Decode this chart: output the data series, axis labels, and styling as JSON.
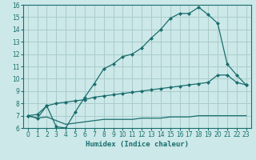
{
  "xlabel": "Humidex (Indice chaleur)",
  "bg_color": "#cce8e8",
  "grid_color": "#aacccc",
  "line_color": "#1a6e6e",
  "xmin": 0,
  "xmax": 23,
  "ymin": 6,
  "ymax": 16,
  "line1_x": [
    0,
    1,
    2,
    3,
    4,
    5,
    6,
    7,
    8,
    9,
    10,
    11,
    12,
    13,
    14,
    15,
    16,
    17,
    18,
    19,
    20,
    21,
    22,
    23
  ],
  "line1_y": [
    7.0,
    6.8,
    7.8,
    6.1,
    6.0,
    7.3,
    8.5,
    9.6,
    10.8,
    11.2,
    11.8,
    12.0,
    12.5,
    13.3,
    14.0,
    14.9,
    15.3,
    15.3,
    15.8,
    15.2,
    14.5,
    11.2,
    10.3,
    9.5
  ],
  "line2_x": [
    0,
    1,
    2,
    3,
    4,
    5,
    6,
    7,
    8,
    9,
    10,
    11,
    12,
    13,
    14,
    15,
    16,
    17,
    18,
    19,
    20,
    21,
    22,
    23
  ],
  "line2_y": [
    7.0,
    7.1,
    7.8,
    8.0,
    8.1,
    8.2,
    8.3,
    8.5,
    8.6,
    8.7,
    8.8,
    8.9,
    9.0,
    9.1,
    9.2,
    9.3,
    9.4,
    9.5,
    9.6,
    9.7,
    10.3,
    10.3,
    9.7,
    9.5
  ],
  "line3_x": [
    0,
    1,
    2,
    3,
    4,
    5,
    6,
    7,
    8,
    9,
    10,
    11,
    12,
    13,
    14,
    15,
    16,
    17,
    18,
    19,
    20,
    21,
    22,
    23
  ],
  "line3_y": [
    7.0,
    6.8,
    6.9,
    6.6,
    6.3,
    6.4,
    6.5,
    6.6,
    6.7,
    6.7,
    6.7,
    6.7,
    6.8,
    6.8,
    6.8,
    6.9,
    6.9,
    6.9,
    7.0,
    7.0,
    7.0,
    7.0,
    7.0,
    7.0
  ],
  "tick_fontsize": 5.5,
  "xlabel_fontsize": 6.5,
  "marker": "D",
  "markersize": 2.0,
  "linewidth": 0.9
}
